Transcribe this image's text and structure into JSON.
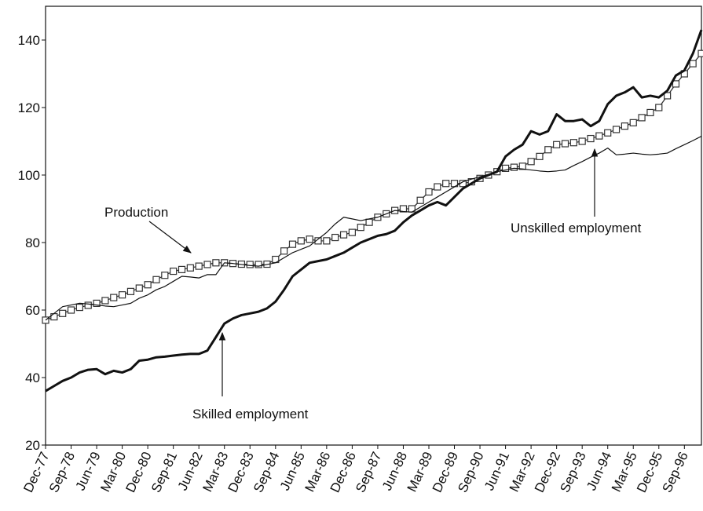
{
  "chart_data": {
    "type": "line",
    "categories": [
      "Dec-77",
      null,
      null,
      "Sep-78",
      null,
      null,
      "Jun-79",
      null,
      null,
      "Mar-80",
      null,
      null,
      "Dec-80",
      null,
      null,
      "Sep-81",
      null,
      null,
      "Jun-82",
      null,
      null,
      "Mar-83",
      null,
      null,
      "Dec-83",
      null,
      null,
      "Sep-84",
      null,
      null,
      "Jun-85",
      null,
      null,
      "Mar-86",
      null,
      null,
      "Dec-86",
      null,
      null,
      "Sep-87",
      null,
      null,
      "Jun-88",
      null,
      null,
      "Mar-89",
      null,
      null,
      "Dec-89",
      null,
      null,
      "Sep-90",
      null,
      null,
      "Jun-91",
      null,
      null,
      "Mar-92",
      null,
      null,
      "Dec-92",
      null,
      null,
      "Sep-93",
      null,
      null,
      "Jun-94",
      null,
      null,
      "Mar-95",
      null,
      null,
      "Dec-95",
      null,
      null,
      "Sep-96",
      null,
      null
    ],
    "series": [
      {
        "name": "Production",
        "color": "#333333",
        "marker": "square",
        "values": [
          57,
          58,
          59,
          60,
          60.8,
          61.4,
          62,
          62.8,
          63.7,
          64.5,
          65.5,
          66.5,
          67.5,
          69,
          70.3,
          71.5,
          72,
          72.5,
          73,
          73.5,
          74,
          74,
          73.8,
          73.6,
          73.5,
          73.5,
          73.6,
          75,
          77.5,
          79.5,
          80.5,
          81,
          80.5,
          80.5,
          81.5,
          82.3,
          83,
          84.5,
          86,
          87.5,
          88.5,
          89.5,
          90,
          90,
          92.5,
          95,
          96.5,
          97.5,
          97.5,
          97.5,
          98,
          99,
          100,
          101,
          102,
          102.3,
          102.6,
          104,
          105.5,
          107.5,
          109,
          109.3,
          109.6,
          110,
          110.8,
          111.6,
          112.5,
          113.5,
          114.5,
          115.5,
          117,
          118.5,
          120,
          123.5,
          127,
          130,
          133,
          136
        ]
      },
      {
        "name": "Skilled employment",
        "color": "#111111",
        "width": 3,
        "values": [
          36,
          37.5,
          39,
          40,
          41.5,
          42.3,
          42.5,
          41,
          42,
          41.5,
          42.5,
          45,
          45.3,
          46,
          46.2,
          46.5,
          46.8,
          47,
          47,
          48,
          52,
          56,
          57.5,
          58.5,
          59,
          59.5,
          60.5,
          62.5,
          66,
          70,
          72,
          74,
          74.5,
          75,
          76,
          77,
          78.5,
          80,
          81,
          82,
          82.5,
          83.5,
          86,
          88,
          89.5,
          91,
          92,
          91,
          93.5,
          96,
          97.5,
          99,
          100,
          101,
          105.5,
          107.5,
          109,
          113,
          112,
          113,
          118,
          116,
          116,
          116.5,
          114.5,
          116,
          121,
          123.5,
          124.5,
          126,
          123,
          123.5,
          123,
          125,
          129.5,
          131,
          136,
          143
        ]
      },
      {
        "name": "Unskilled employment",
        "color": "#111111",
        "width": 1.2,
        "values": [
          57,
          59,
          61,
          61.5,
          62,
          61.8,
          61.5,
          61.2,
          61,
          61.5,
          62,
          63.5,
          64.5,
          66,
          67,
          68.5,
          70,
          69.8,
          69.5,
          70.5,
          70.5,
          74,
          73.8,
          73.5,
          73.2,
          73,
          73.5,
          74,
          75.5,
          77,
          78,
          79,
          81,
          83,
          85.5,
          87.5,
          87,
          86.5,
          87,
          87.5,
          88.5,
          89.5,
          89.2,
          89,
          90.5,
          92,
          93.5,
          95,
          96.5,
          98,
          98.8,
          99.5,
          100.2,
          101,
          101.5,
          102,
          101.8,
          101.5,
          101.2,
          101,
          101.2,
          101.5,
          102.8,
          104,
          105.3,
          106.5,
          108,
          106,
          106.2,
          106.5,
          106.2,
          106,
          106.2,
          106.5,
          107.8,
          109,
          110.2,
          111.5
        ]
      }
    ],
    "ylim": [
      20,
      150
    ],
    "yticks": [
      20,
      40,
      60,
      80,
      100,
      120,
      140
    ],
    "grid": false
  }
}
